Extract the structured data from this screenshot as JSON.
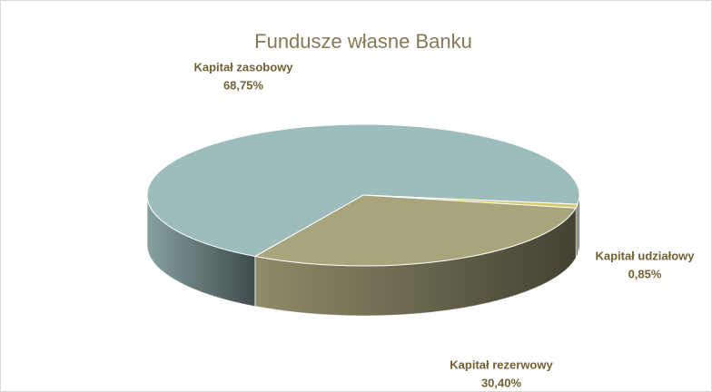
{
  "chart_data": {
    "type": "pie3d",
    "title": "Fundusze własne Banku",
    "categories": [
      "Kapitał zasobowy",
      "Kapitał udziałowy",
      "Kapitał rezerwowy"
    ],
    "values": [
      68.75,
      0.85,
      30.4
    ],
    "value_labels": [
      "68,75%",
      "0,85%",
      "30,40%"
    ],
    "colors": [
      "#9dbcbc",
      "#d6c86a",
      "#a8a47c"
    ]
  }
}
